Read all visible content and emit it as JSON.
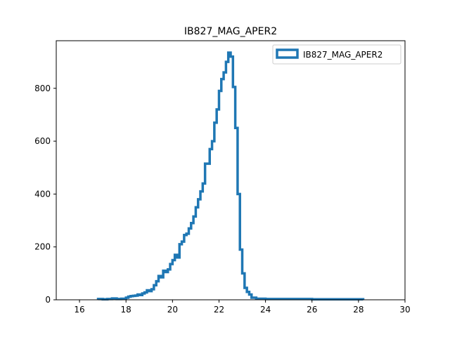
{
  "chart_data": {
    "type": "histogram",
    "title": "IB827_MAG_APER2",
    "xlabel": "",
    "ylabel": "",
    "xlim": [
      15,
      30
    ],
    "ylim": [
      0,
      980
    ],
    "xticks": [
      16,
      18,
      20,
      22,
      24,
      26,
      28,
      30
    ],
    "yticks": [
      0,
      200,
      400,
      600,
      800
    ],
    "grid": false,
    "legend_position": "top-right",
    "histtype": "step",
    "series": [
      {
        "name": "IB827_MAG_APER2",
        "color": "#1f77b4",
        "bin_edges": [
          16.8,
          17.0,
          17.2,
          17.4,
          17.6,
          17.8,
          18.0,
          18.1,
          18.2,
          18.3,
          18.4,
          18.5,
          18.6,
          18.7,
          18.8,
          18.9,
          19.0,
          19.1,
          19.2,
          19.3,
          19.4,
          19.5,
          19.6,
          19.7,
          19.8,
          19.9,
          20.0,
          20.1,
          20.2,
          20.3,
          20.4,
          20.5,
          20.6,
          20.7,
          20.8,
          20.9,
          21.0,
          21.1,
          21.2,
          21.3,
          21.4,
          21.5,
          21.6,
          21.7,
          21.8,
          21.9,
          22.0,
          22.1,
          22.2,
          22.3,
          22.4,
          22.5,
          22.6,
          22.7,
          22.8,
          22.9,
          23.0,
          23.1,
          23.2,
          23.3,
          23.4,
          23.6,
          24.0,
          26.0,
          28.2
        ],
        "counts": [
          3,
          2,
          3,
          5,
          3,
          4,
          8,
          12,
          14,
          15,
          16,
          20,
          18,
          24,
          28,
          36,
          33,
          40,
          55,
          70,
          90,
          85,
          110,
          105,
          115,
          135,
          150,
          170,
          160,
          210,
          220,
          245,
          250,
          270,
          290,
          315,
          350,
          380,
          410,
          440,
          515,
          515,
          570,
          600,
          670,
          720,
          790,
          835,
          860,
          900,
          935,
          920,
          805,
          650,
          400,
          190,
          100,
          45,
          30,
          20,
          8,
          4,
          3,
          2
        ]
      }
    ]
  }
}
